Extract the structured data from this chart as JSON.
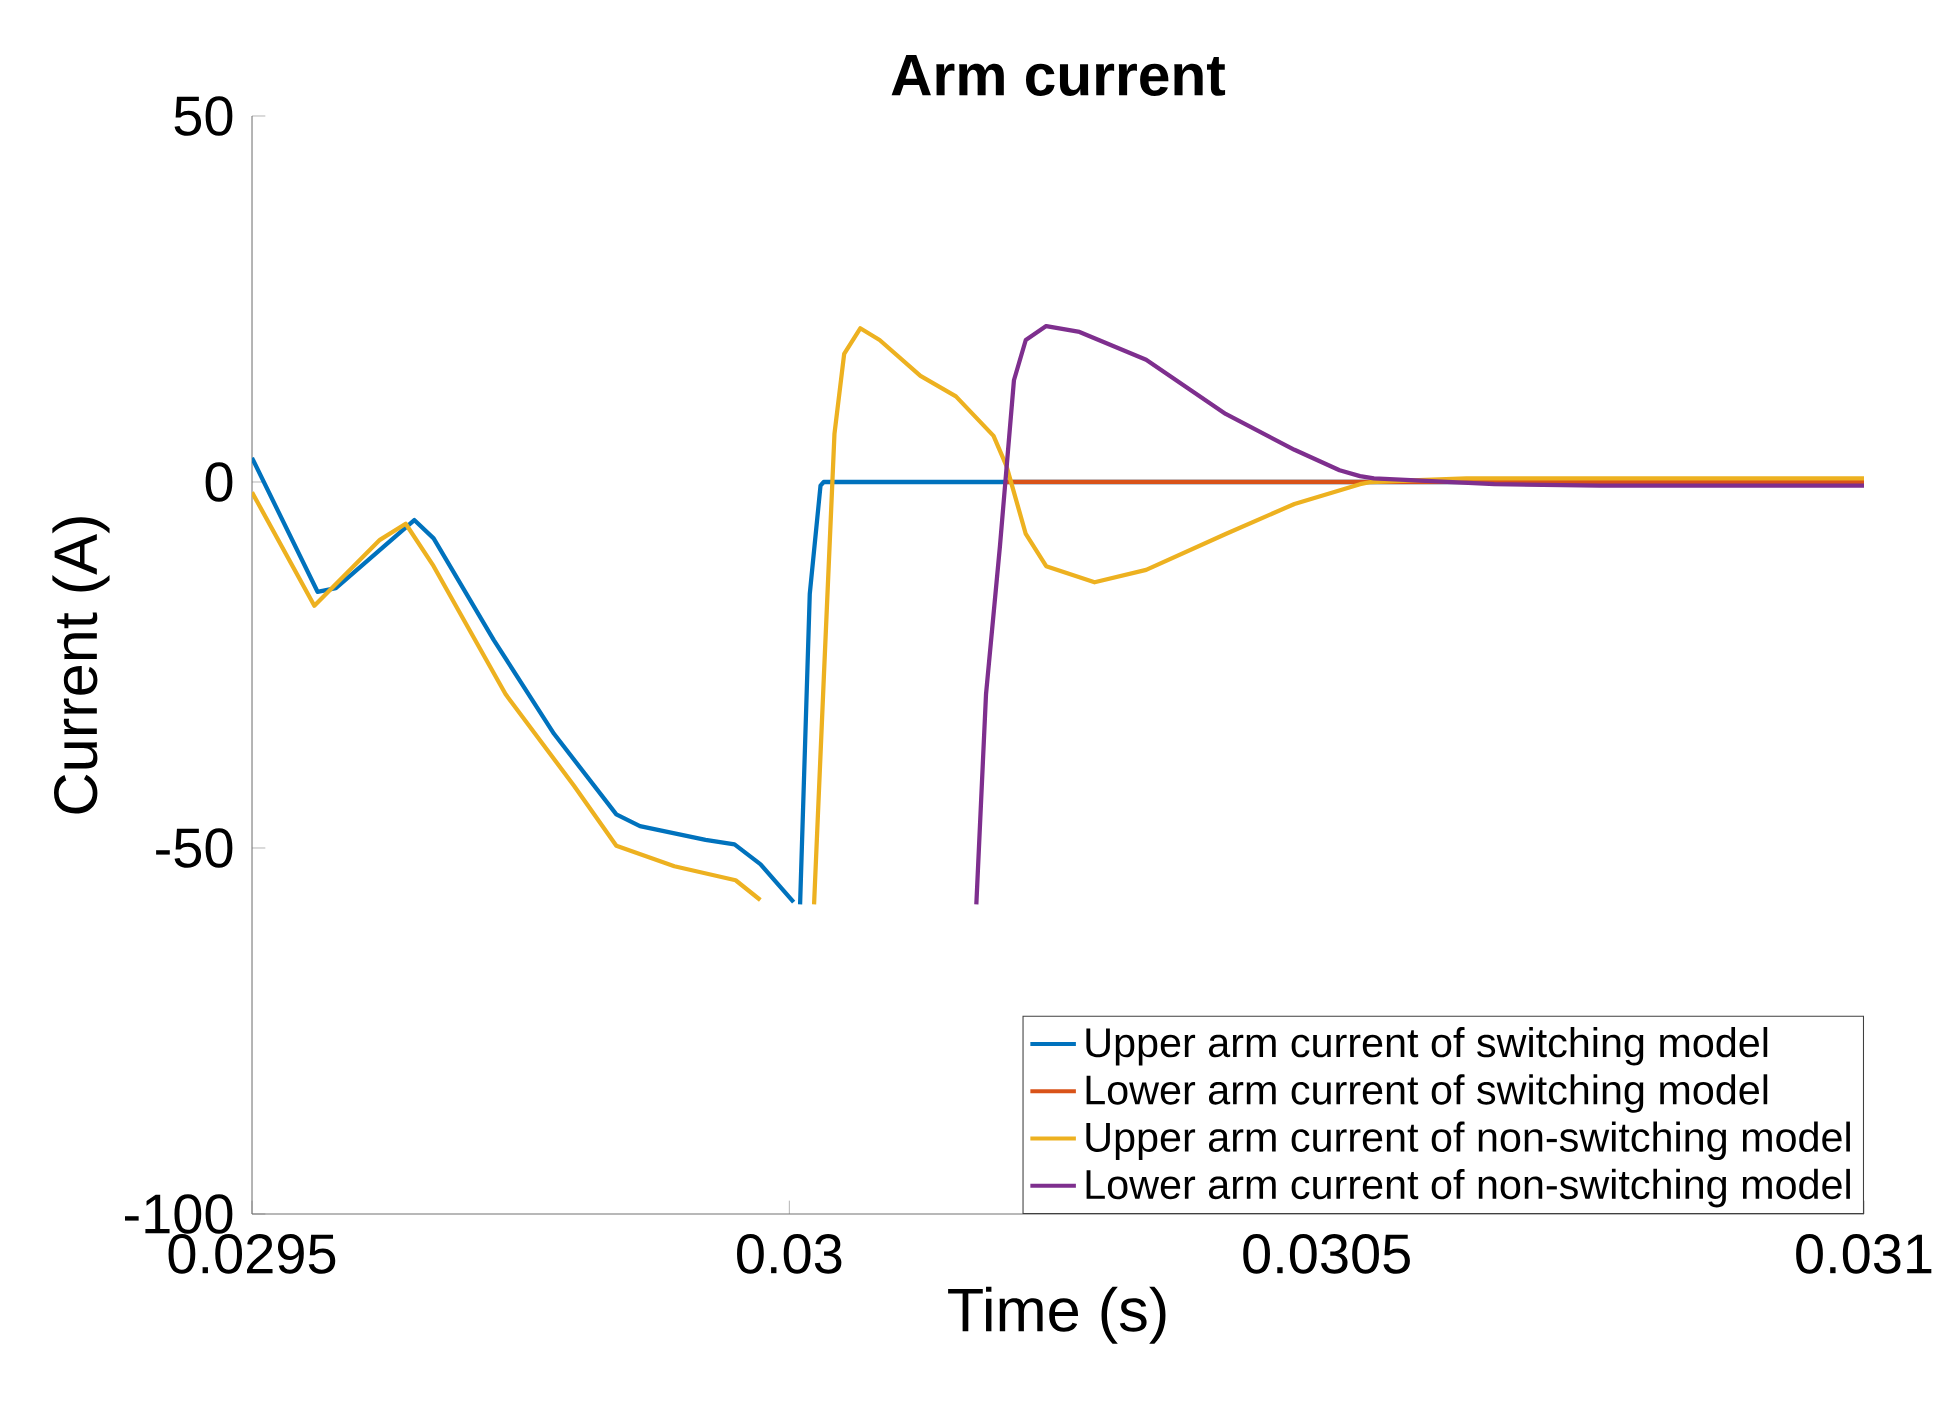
{
  "chart_data": {
    "type": "line",
    "title": "Arm current",
    "xlabel": "Time (s)",
    "ylabel": "Current (A)",
    "xlim": [
      0.0295,
      0.031
    ],
    "ylim": [
      -100,
      50
    ],
    "xticks": [
      0.0295,
      0.03,
      0.0305,
      0.031
    ],
    "yticks": [
      -100,
      -50,
      0,
      50
    ],
    "legend": "bottom right",
    "grid": false,
    "series": [
      {
        "name": "Upper arm current of switching model",
        "color": "#0072bd",
        "x": [
          0.0295,
          0.029561,
          0.029578,
          0.029651,
          0.029669,
          0.029725,
          0.029781,
          0.029839,
          0.029861,
          0.029922,
          0.029949,
          0.029973,
          0.030004,
          0.030007,
          0.03001,
          0.030019,
          0.030029,
          0.030032,
          0.031
        ],
        "values": [
          3.3,
          -15.0,
          -14.5,
          -5.2,
          -7.7,
          -21.6,
          -34.4,
          -45.4,
          -47.0,
          -48.9,
          -49.5,
          -52.2,
          -57.4,
          null,
          -57.7,
          -15.3,
          -0.5,
          0,
          0
        ]
      },
      {
        "name": "Lower arm current of switching model",
        "color": "#d95319",
        "x": [
          0.030202,
          0.031
        ],
        "values": [
          0,
          0
        ]
      },
      {
        "name": "Upper arm current of non-switching model",
        "color": "#edb120",
        "x": [
          0.0295,
          0.029558,
          0.029619,
          0.029643,
          0.029669,
          0.029736,
          0.0297996,
          0.029839,
          0.029893,
          0.02995,
          0.029973,
          0.03,
          0.030023,
          0.030032,
          0.030042,
          0.030051,
          0.030066,
          0.030084,
          0.030122,
          0.030155,
          0.03019,
          0.030202,
          0.03022,
          0.030239,
          0.030284,
          0.030332,
          0.030406,
          0.03047,
          0.030531,
          0.030541,
          0.03063,
          0.031
        ],
        "values": [
          -1.4,
          -16.9,
          -7.9,
          -5.7,
          -11.5,
          -29.0,
          -41.5,
          -49.7,
          -52.5,
          -54.4,
          -57.1,
          null,
          -57.7,
          -27.0,
          6.6,
          17.5,
          21.0,
          19.4,
          14.5,
          11.7,
          6.3,
          2.2,
          -7.1,
          -11.5,
          -13.7,
          -12.0,
          -7.1,
          -3.0,
          -0.3,
          0,
          0.5,
          0.5
        ]
      },
      {
        "name": "Lower arm current of non-switching model",
        "color": "#7e2f8e",
        "x": [
          0.030174,
          0.030183,
          0.030196,
          0.030209,
          0.03022,
          0.030239,
          0.03027,
          0.030332,
          0.030406,
          0.03047,
          0.030512,
          0.030531,
          0.030544,
          0.030656,
          0.030754,
          0.031
        ],
        "values": [
          -57.7,
          -29.0,
          -8.7,
          13.9,
          19.4,
          21.3,
          20.5,
          16.7,
          9.3,
          4.4,
          1.6,
          0.8,
          0.5,
          -0.3,
          -0.5,
          -0.5
        ]
      }
    ]
  }
}
